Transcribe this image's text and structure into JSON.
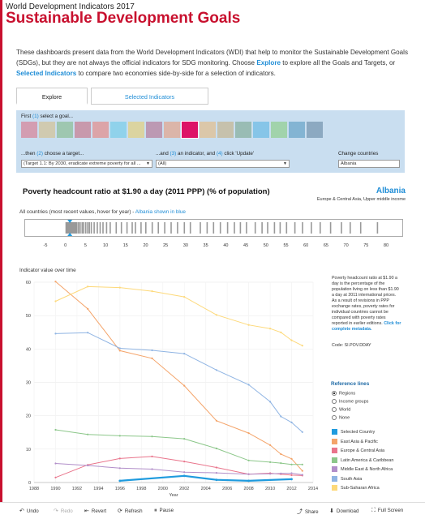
{
  "header": {
    "subtitle": "World Development Indicators 2017",
    "title": "Sustainable Development Goals"
  },
  "intro": {
    "part1": "These dashboards present data from the World Development Indicators (WDI) that help to monitor the Sustainable Development Goals (SDGs), but they are not always the official indicators for SDG monitoring. Choose ",
    "link1": "Explore",
    "part2": " to explore all the Goals and Targets, or ",
    "link2": "Selected Indicators",
    "part3": " to compare two economies side-by-side for a selection of indicators."
  },
  "tabs": {
    "explore": "Explore",
    "selected": "Selected Indicators"
  },
  "panel": {
    "step1_pre": "First ",
    "step1_num": "(1)",
    "step1_post": " select a goal...",
    "step2_pre": "...then ",
    "step2_num": "(2)",
    "step2_post": " choose a target...",
    "step3_pre": "...and ",
    "step3_num": "(3)",
    "step3_mid": " an indicator, and ",
    "step3_num2": "(4)",
    "step3_post": " click 'Update'",
    "change_label": "Change countries",
    "target_value": "(Target 1.1: By 2030, eradicate extreme poverty for all ...",
    "indicator_value": "(All)",
    "country_value": "Albania",
    "goals": [
      {
        "color": "#e5243b",
        "selected": false
      },
      {
        "color": "#dda63a",
        "selected": false
      },
      {
        "color": "#4c9f38",
        "selected": false
      },
      {
        "color": "#c5192d",
        "selected": false
      },
      {
        "color": "#ff3a21",
        "selected": false
      },
      {
        "color": "#26bde2",
        "selected": false
      },
      {
        "color": "#fcc30b",
        "selected": false
      },
      {
        "color": "#a21942",
        "selected": false
      },
      {
        "color": "#fd6925",
        "selected": false
      },
      {
        "color": "#dd1367",
        "selected": true
      },
      {
        "color": "#fd9d24",
        "selected": false
      },
      {
        "color": "#bf8b2e",
        "selected": false
      },
      {
        "color": "#3f7e44",
        "selected": false
      },
      {
        "color": "#0a97d9",
        "selected": false
      },
      {
        "color": "#56c02b",
        "selected": false
      },
      {
        "color": "#00689d",
        "selected": false
      },
      {
        "color": "#19486a",
        "selected": false
      }
    ]
  },
  "indicator": {
    "title": "Poverty headcount ratio at $1.90 a day (2011 PPP) (% of population)",
    "country": "Albania",
    "country_sub": "Europe & Central Asia, Upper middle income"
  },
  "strip": {
    "label_pre": "All countries (most recent values, hover for year) - ",
    "label_blue": "Albania shown in blue",
    "ticks": [
      "-5",
      "0",
      "5",
      "10",
      "15",
      "20",
      "25",
      "30",
      "35",
      "40",
      "45",
      "50",
      "55",
      "60",
      "65",
      "70",
      "75",
      "80"
    ]
  },
  "chart": {
    "title": "Indicator value over time",
    "note": "Poverty headcount ratio at $1.90 a day is the percentage of the population living on less than $1.90 a day at 2011 international prices. As a result of revisions in PPP exchange rates, poverty rates for individual countries cannot be compared with poverty rates reported in earlier editions.",
    "note_link": "Click for complete metadata.",
    "code": "Code: SI.POV.DDAY"
  },
  "reference": {
    "title": "Reference lines",
    "options": [
      {
        "label": "Regions",
        "checked": true
      },
      {
        "label": "Income groups",
        "checked": false
      },
      {
        "label": "World",
        "checked": false
      },
      {
        "label": "None",
        "checked": false
      }
    ]
  },
  "chart_data": {
    "type": "line",
    "title": "Indicator value over time",
    "xlabel": "Year",
    "ylabel": "",
    "xlim": [
      1988,
      2014
    ],
    "ylim": [
      0,
      60
    ],
    "x_ticks": [
      1988,
      1990,
      1992,
      1994,
      1996,
      1998,
      2000,
      2002,
      2004,
      2006,
      2008,
      2010,
      2012,
      2014
    ],
    "y_ticks": [
      0,
      10,
      20,
      30,
      40,
      50,
      60
    ],
    "grid": true,
    "legend": "right",
    "series": [
      {
        "name": "Selected Country",
        "color": "#1f9bde",
        "width": 2.2,
        "points": [
          [
            1996,
            0.5
          ],
          [
            2002,
            2.0
          ],
          [
            2005,
            0.8
          ],
          [
            2008,
            0.5
          ],
          [
            2012,
            1.0
          ]
        ]
      },
      {
        "name": "East Asia & Pacific",
        "color": "#f4a46a",
        "width": 1,
        "points": [
          [
            1990,
            60.2
          ],
          [
            1993,
            52.0
          ],
          [
            1996,
            39.5
          ],
          [
            1999,
            37.2
          ],
          [
            2002,
            29.0
          ],
          [
            2005,
            18.5
          ],
          [
            2008,
            14.8
          ],
          [
            2010,
            11.2
          ],
          [
            2011,
            8.5
          ],
          [
            2012,
            7.1
          ],
          [
            2013,
            3.5
          ]
        ]
      },
      {
        "name": "Europe & Central Asia",
        "color": "#e9748b",
        "width": 1,
        "points": [
          [
            1990,
            1.5
          ],
          [
            1993,
            5.3
          ],
          [
            1996,
            7.2
          ],
          [
            1999,
            7.8
          ],
          [
            2002,
            6.3
          ],
          [
            2005,
            4.5
          ],
          [
            2008,
            2.5
          ],
          [
            2010,
            2.8
          ],
          [
            2011,
            2.5
          ],
          [
            2012,
            2.2
          ],
          [
            2013,
            2.1
          ]
        ]
      },
      {
        "name": "Latin America & Caribbean",
        "color": "#8cc78a",
        "width": 1,
        "points": [
          [
            1990,
            15.8
          ],
          [
            1993,
            14.4
          ],
          [
            1996,
            14.0
          ],
          [
            1999,
            13.8
          ],
          [
            2002,
            13.1
          ],
          [
            2005,
            10.2
          ],
          [
            2008,
            6.6
          ],
          [
            2010,
            6.1
          ],
          [
            2011,
            5.8
          ],
          [
            2012,
            5.4
          ],
          [
            2013,
            5.4
          ]
        ]
      },
      {
        "name": "Middle East & North Africa",
        "color": "#b18ec9",
        "width": 1,
        "points": [
          [
            1990,
            5.7
          ],
          [
            1993,
            5.1
          ],
          [
            1996,
            4.3
          ],
          [
            1999,
            4.0
          ],
          [
            2002,
            3.1
          ],
          [
            2005,
            2.9
          ],
          [
            2008,
            2.5
          ],
          [
            2010,
            2.6
          ],
          [
            2011,
            2.7
          ],
          [
            2012,
            2.8
          ],
          [
            2013,
            2.3
          ]
        ]
      },
      {
        "name": "South Asia",
        "color": "#8fb4e3",
        "width": 1,
        "points": [
          [
            1990,
            44.6
          ],
          [
            1993,
            44.9
          ],
          [
            1996,
            40.2
          ],
          [
            1999,
            39.6
          ],
          [
            2002,
            38.6
          ],
          [
            2005,
            33.7
          ],
          [
            2008,
            29.3
          ],
          [
            2010,
            24.2
          ],
          [
            2011,
            19.8
          ],
          [
            2012,
            18.0
          ],
          [
            2013,
            15.1
          ]
        ]
      },
      {
        "name": "Sub-Saharan Africa",
        "color": "#fdd97a",
        "width": 1,
        "points": [
          [
            1990,
            54.3
          ],
          [
            1993,
            58.7
          ],
          [
            1996,
            58.4
          ],
          [
            1999,
            57.3
          ],
          [
            2002,
            55.6
          ],
          [
            2005,
            50.2
          ],
          [
            2008,
            47.2
          ],
          [
            2010,
            46.1
          ],
          [
            2011,
            45.0
          ],
          [
            2012,
            42.6
          ],
          [
            2013,
            41.0
          ]
        ]
      }
    ]
  },
  "strip_values": [
    1.0,
    1.2,
    1.5,
    1.8,
    2.1,
    2.4,
    2.7,
    3.1,
    3.5,
    4.0,
    4.4,
    4.9,
    5.4,
    5.8,
    6.3,
    7.0,
    7.8,
    8.5,
    9.2,
    10.1,
    11.0,
    12.5,
    13.8,
    15.2,
    16.5,
    17.3,
    18.7,
    19.9,
    21.5,
    23.0,
    24.6,
    26.2,
    27.8,
    29.5,
    31.0,
    33.5,
    35.2,
    36.8,
    38.5,
    40.3,
    42.0,
    43.5,
    45.0,
    47.2,
    48.9,
    50.3,
    52.0,
    53.4,
    55.0,
    57.1,
    59.0,
    61.2,
    63.4,
    66.0,
    68.7,
    70.9,
    73.5,
    77.7
  ],
  "strip_selected": 1.1,
  "toolbar": {
    "undo": "Undo",
    "redo": "Redo",
    "revert": "Revert",
    "refresh": "Refresh",
    "pause": "Pause",
    "share": "Share",
    "download": "Download",
    "fullscreen": "Full Screen"
  }
}
